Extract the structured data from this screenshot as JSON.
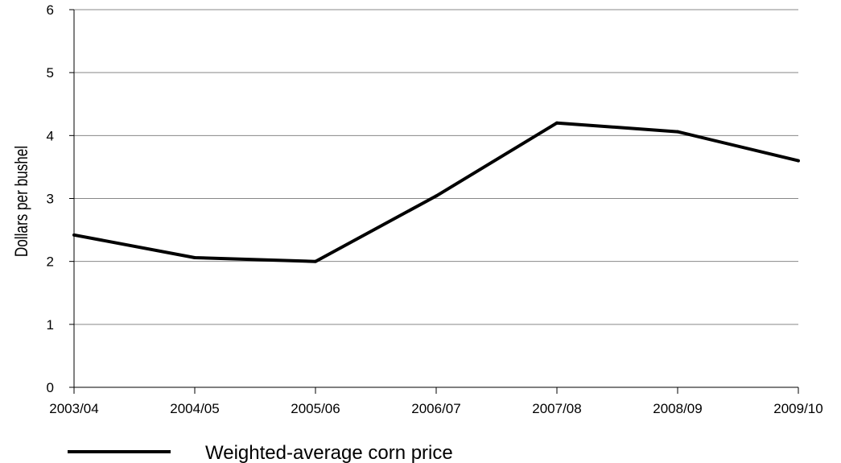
{
  "chart_data": {
    "type": "line",
    "categories": [
      "2003/04",
      "2004/05",
      "2005/06",
      "2006/07",
      "2007/08",
      "2008/09",
      "2009/10"
    ],
    "series": [
      {
        "name": "Weighted-average corn price",
        "values": [
          2.42,
          2.06,
          2.0,
          3.04,
          4.2,
          4.06,
          3.6
        ],
        "color": "#000000"
      }
    ],
    "xlabel": "",
    "ylabel": "Dollars per bushel",
    "ylim": [
      0,
      6
    ],
    "yticks": [
      0,
      1,
      2,
      3,
      4,
      5,
      6
    ],
    "grid": true,
    "legend_position": "bottom-left"
  }
}
